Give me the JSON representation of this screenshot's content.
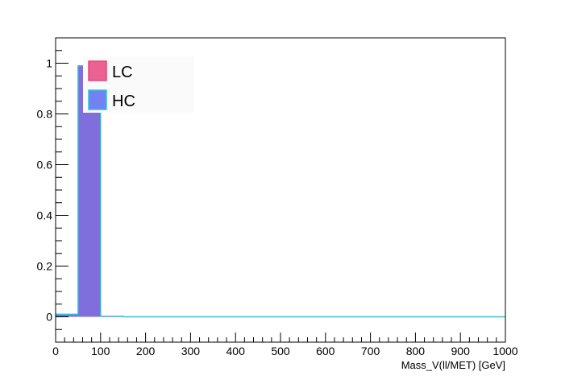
{
  "chart_data": {
    "type": "bar",
    "title": "",
    "xlabel": "Mass_V(ll/MET) [GeV]",
    "ylabel": "",
    "xlim": [
      0,
      1000
    ],
    "ylim": [
      -0.1,
      1.1
    ],
    "grid": false,
    "legend_placement": "top-left",
    "bin_edges": [
      0,
      50,
      100,
      150,
      200,
      250,
      300,
      350,
      400,
      450,
      500,
      550,
      600,
      650,
      700,
      750,
      800,
      850,
      900,
      950,
      1000
    ],
    "x_ticks": [
      0,
      100,
      200,
      300,
      400,
      500,
      600,
      700,
      800,
      900,
      1000
    ],
    "x_tick_labels": [
      "0",
      "100",
      "200",
      "300",
      "400",
      "500",
      "600",
      "700",
      "800",
      "900",
      "1000"
    ],
    "y_ticks": [
      0,
      0.2,
      0.4,
      0.6,
      0.8,
      1
    ],
    "y_tick_labels": [
      "0",
      "0.2",
      "0.4",
      "0.6",
      "0.8",
      "1"
    ],
    "series": [
      {
        "name": "LC",
        "fill_color": "#e8457f",
        "line_color": "#e8457f",
        "values": [
          0.01,
          0.99,
          0.002,
          0,
          0,
          0,
          0,
          0,
          0,
          0,
          0,
          0,
          0,
          0,
          0,
          0,
          0,
          0,
          0,
          0
        ]
      },
      {
        "name": "HC",
        "fill_color": "#5a6cf0",
        "line_color": "#2ec4d8",
        "values": [
          0.01,
          0.99,
          0.002,
          0,
          0,
          0,
          0,
          0,
          0,
          0,
          0,
          0,
          0,
          0,
          0,
          0,
          0,
          0,
          0,
          0
        ]
      }
    ]
  }
}
